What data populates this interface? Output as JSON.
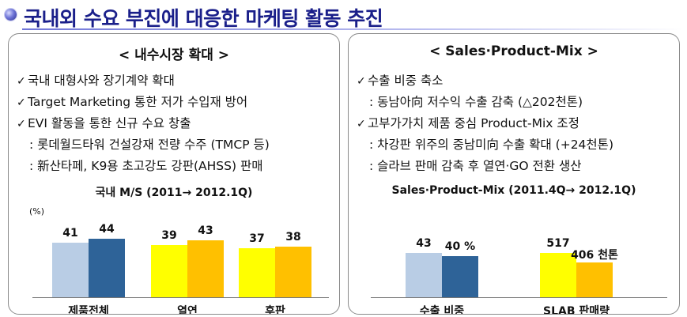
{
  "header": {
    "title": "국내외 수요 부진에 대응한 마케팅 활동 추진"
  },
  "left_panel": {
    "heading": "<  내수시장 확대  >",
    "lines": [
      {
        "type": "check",
        "text": "국내 대형사와 장기계약 확대"
      },
      {
        "type": "check",
        "text": "Target Marketing 통한 저가 수입재 방어"
      },
      {
        "type": "check",
        "text": "EVI 활동을 통한 신규 수요 창출"
      },
      {
        "type": "sub",
        "text": ": 롯데월드타워 건설강재 전량 수주 (TMCP 등)"
      },
      {
        "type": "sub",
        "text": ": 新산타페, K9용 초고강도 강판(AHSS) 판매"
      }
    ]
  },
  "right_panel": {
    "heading": "<   Sales·Product-Mix   >",
    "lines": [
      {
        "type": "check",
        "text": "수출 비중 축소"
      },
      {
        "type": "sub",
        "text": ": 동남아向 저수익 수출 감축 (△202천톤)"
      },
      {
        "type": "check",
        "text": "고부가가치 제품 중심 Product-Mix 조정"
      },
      {
        "type": "sub",
        "text": ": 차강판 위주의 중남미向 수출 확대 (+24천톤)"
      },
      {
        "type": "sub",
        "text": ": 슬라브 판매 감축 후 열연·GO 전환 생산"
      }
    ]
  },
  "icons": {
    "check": "✓",
    "title_bullet": "orb-bullet-icon"
  },
  "chart_data": [
    {
      "type": "bar",
      "title": "국내 M/S (2011→ 2012.1Q)",
      "unit": "(%)",
      "categories": [
        "제품전체",
        "열연",
        "후판"
      ],
      "series": [
        {
          "values": [
            41,
            39,
            37
          ],
          "colors": [
            "#b9cde5",
            "#ffff00",
            "#ffff00"
          ]
        },
        {
          "values": [
            44,
            43,
            38
          ],
          "colors": [
            "#2e6398",
            "#ffc000",
            "#ffc000"
          ]
        }
      ],
      "ylim": [
        0,
        60
      ]
    },
    {
      "type": "bar",
      "title": "Sales·Product-Mix (2011.4Q→ 2012.1Q)",
      "categories": [
        "수출 비중",
        "SLAB 판매량"
      ],
      "series": [
        {
          "values": [
            43,
            517
          ],
          "colors": [
            "#b9cde5",
            "#ffff00"
          ]
        },
        {
          "values": [
            40,
            406
          ],
          "colors": [
            "#2e6398",
            "#ffc000"
          ]
        }
      ],
      "value_labels": [
        [
          "43",
          "40 %"
        ],
        [
          "517",
          "406 천톤"
        ]
      ]
    }
  ]
}
